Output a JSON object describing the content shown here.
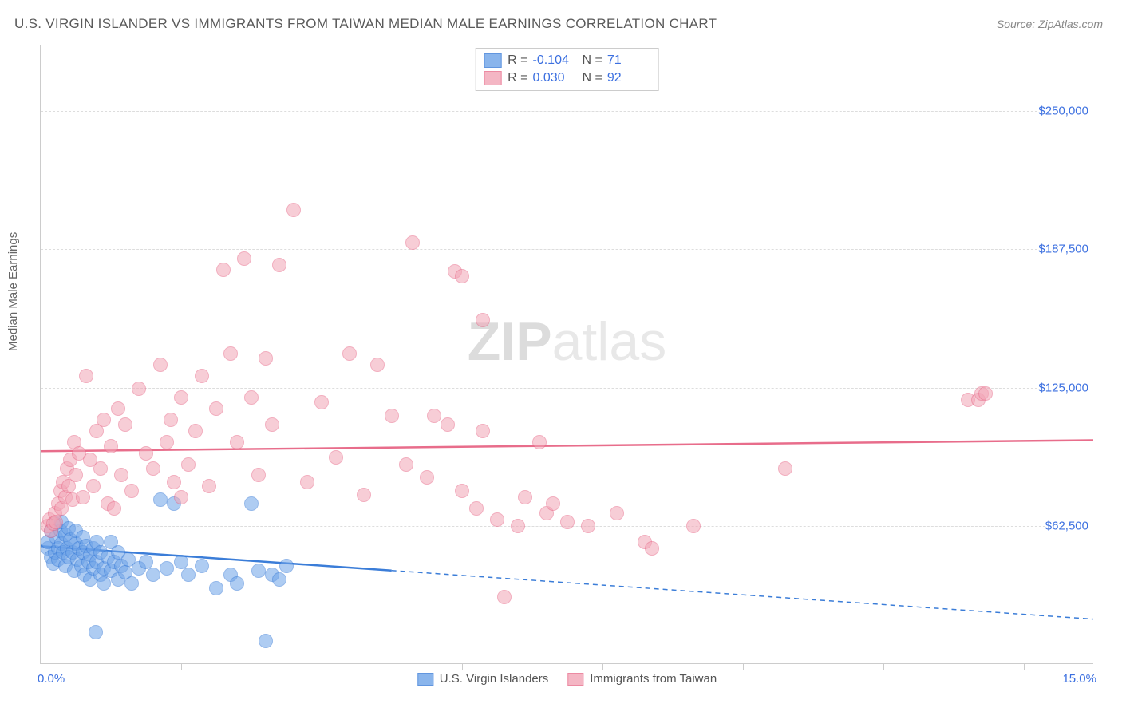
{
  "title": "U.S. VIRGIN ISLANDER VS IMMIGRANTS FROM TAIWAN MEDIAN MALE EARNINGS CORRELATION CHART",
  "source": "Source: ZipAtlas.com",
  "watermark_zip": "ZIP",
  "watermark_atlas": "atlas",
  "ylabel": "Median Male Earnings",
  "chart": {
    "type": "scatter",
    "xlim": [
      0,
      15
    ],
    "ylim": [
      0,
      280000
    ],
    "x_ticks_at": [
      2,
      4,
      6,
      8,
      10,
      12,
      14
    ],
    "x_min_label": "0.0%",
    "x_max_label": "15.0%",
    "y_grid": [
      {
        "value": 62500,
        "label": "$62,500"
      },
      {
        "value": 125000,
        "label": "$125,000"
      },
      {
        "value": 187500,
        "label": "$187,500"
      },
      {
        "value": 250000,
        "label": "$250,000"
      }
    ],
    "background_color": "#ffffff",
    "grid_color": "#dddddd",
    "marker_radius": 9,
    "marker_opacity": 0.55,
    "series": [
      {
        "key": "usvi",
        "name": "U.S. Virgin Islanders",
        "color": "#6da3e8",
        "stroke": "#3b7dd8",
        "R": "-0.104",
        "N": "71",
        "trend": {
          "y_at_x0": 53000,
          "y_at_x15": 20000,
          "solid_until_x": 5.0
        },
        "points": [
          [
            0.1,
            52000
          ],
          [
            0.1,
            55000
          ],
          [
            0.15,
            48000
          ],
          [
            0.15,
            60000
          ],
          [
            0.18,
            45000
          ],
          [
            0.2,
            63000
          ],
          [
            0.2,
            50000
          ],
          [
            0.22,
            57000
          ],
          [
            0.25,
            52000
          ],
          [
            0.25,
            47000
          ],
          [
            0.28,
            60000
          ],
          [
            0.3,
            54000
          ],
          [
            0.3,
            64000
          ],
          [
            0.32,
            50000
          ],
          [
            0.35,
            44000
          ],
          [
            0.35,
            58000
          ],
          [
            0.38,
            52000
          ],
          [
            0.4,
            48000
          ],
          [
            0.4,
            61000
          ],
          [
            0.42,
            56000
          ],
          [
            0.45,
            50000
          ],
          [
            0.48,
            42000
          ],
          [
            0.5,
            54000
          ],
          [
            0.5,
            60000
          ],
          [
            0.52,
            47000
          ],
          [
            0.55,
            52000
          ],
          [
            0.58,
            44000
          ],
          [
            0.6,
            57000
          ],
          [
            0.6,
            50000
          ],
          [
            0.62,
            40000
          ],
          [
            0.65,
            53000
          ],
          [
            0.68,
            46000
          ],
          [
            0.7,
            49000
          ],
          [
            0.7,
            38000
          ],
          [
            0.75,
            43000
          ],
          [
            0.75,
            52000
          ],
          [
            0.78,
            14000
          ],
          [
            0.8,
            46000
          ],
          [
            0.8,
            55000
          ],
          [
            0.85,
            40000
          ],
          [
            0.85,
            50000
          ],
          [
            0.9,
            43000
          ],
          [
            0.9,
            36000
          ],
          [
            0.95,
            48000
          ],
          [
            1.0,
            42000
          ],
          [
            1.0,
            55000
          ],
          [
            1.05,
            46000
          ],
          [
            1.1,
            50000
          ],
          [
            1.1,
            38000
          ],
          [
            1.15,
            44000
          ],
          [
            1.2,
            41000
          ],
          [
            1.25,
            47000
          ],
          [
            1.3,
            36000
          ],
          [
            1.4,
            43000
          ],
          [
            1.5,
            46000
          ],
          [
            1.6,
            40000
          ],
          [
            1.7,
            74000
          ],
          [
            1.8,
            43000
          ],
          [
            1.9,
            72000
          ],
          [
            2.0,
            46000
          ],
          [
            2.1,
            40000
          ],
          [
            2.3,
            44000
          ],
          [
            2.5,
            34000
          ],
          [
            2.7,
            40000
          ],
          [
            2.8,
            36000
          ],
          [
            3.0,
            72000
          ],
          [
            3.1,
            42000
          ],
          [
            3.2,
            10000
          ],
          [
            3.3,
            40000
          ],
          [
            3.4,
            38000
          ],
          [
            3.5,
            44000
          ]
        ]
      },
      {
        "key": "taiwan",
        "name": "Immigrants from Taiwan",
        "color": "#f2a5b6",
        "stroke": "#e86d8b",
        "R": "0.030",
        "N": "92",
        "trend": {
          "y_at_x0": 96000,
          "y_at_x15": 101000,
          "solid_until_x": 15.0
        },
        "points": [
          [
            0.1,
            62000
          ],
          [
            0.12,
            65000
          ],
          [
            0.15,
            60000
          ],
          [
            0.18,
            63000
          ],
          [
            0.2,
            68000
          ],
          [
            0.22,
            64000
          ],
          [
            0.25,
            72000
          ],
          [
            0.28,
            78000
          ],
          [
            0.3,
            70000
          ],
          [
            0.32,
            82000
          ],
          [
            0.35,
            75000
          ],
          [
            0.38,
            88000
          ],
          [
            0.4,
            80000
          ],
          [
            0.42,
            92000
          ],
          [
            0.45,
            74000
          ],
          [
            0.48,
            100000
          ],
          [
            0.5,
            85000
          ],
          [
            0.55,
            95000
          ],
          [
            0.6,
            75000
          ],
          [
            0.65,
            130000
          ],
          [
            0.7,
            92000
          ],
          [
            0.75,
            80000
          ],
          [
            0.8,
            105000
          ],
          [
            0.85,
            88000
          ],
          [
            0.9,
            110000
          ],
          [
            0.95,
            72000
          ],
          [
            1.0,
            98000
          ],
          [
            1.05,
            70000
          ],
          [
            1.1,
            115000
          ],
          [
            1.15,
            85000
          ],
          [
            1.2,
            108000
          ],
          [
            1.3,
            78000
          ],
          [
            1.4,
            124000
          ],
          [
            1.5,
            95000
          ],
          [
            1.6,
            88000
          ],
          [
            1.7,
            135000
          ],
          [
            1.8,
            100000
          ],
          [
            1.85,
            110000
          ],
          [
            1.9,
            82000
          ],
          [
            2.0,
            120000
          ],
          [
            2.0,
            75000
          ],
          [
            2.1,
            90000
          ],
          [
            2.2,
            105000
          ],
          [
            2.3,
            130000
          ],
          [
            2.4,
            80000
          ],
          [
            2.5,
            115000
          ],
          [
            2.6,
            178000
          ],
          [
            2.7,
            140000
          ],
          [
            2.8,
            100000
          ],
          [
            2.9,
            183000
          ],
          [
            3.0,
            120000
          ],
          [
            3.1,
            85000
          ],
          [
            3.2,
            138000
          ],
          [
            3.3,
            108000
          ],
          [
            3.4,
            180000
          ],
          [
            3.6,
            205000
          ],
          [
            3.8,
            82000
          ],
          [
            4.0,
            118000
          ],
          [
            4.2,
            93000
          ],
          [
            4.4,
            140000
          ],
          [
            4.6,
            76000
          ],
          [
            4.8,
            135000
          ],
          [
            5.0,
            112000
          ],
          [
            5.2,
            90000
          ],
          [
            5.3,
            190000
          ],
          [
            5.5,
            84000
          ],
          [
            5.6,
            112000
          ],
          [
            5.8,
            108000
          ],
          [
            5.9,
            177000
          ],
          [
            6.0,
            175000
          ],
          [
            6.0,
            78000
          ],
          [
            6.2,
            70000
          ],
          [
            6.3,
            105000
          ],
          [
            6.3,
            155000
          ],
          [
            6.5,
            65000
          ],
          [
            6.6,
            30000
          ],
          [
            6.8,
            62000
          ],
          [
            6.9,
            75000
          ],
          [
            7.1,
            100000
          ],
          [
            7.2,
            68000
          ],
          [
            7.3,
            72000
          ],
          [
            7.5,
            64000
          ],
          [
            7.8,
            62000
          ],
          [
            8.2,
            68000
          ],
          [
            8.6,
            55000
          ],
          [
            8.7,
            52000
          ],
          [
            9.3,
            62000
          ],
          [
            10.6,
            88000
          ],
          [
            13.2,
            119000
          ],
          [
            13.35,
            119000
          ],
          [
            13.4,
            122000
          ],
          [
            13.45,
            122000
          ]
        ]
      }
    ]
  },
  "legend_r_label": "R =",
  "legend_n_label": "N ="
}
